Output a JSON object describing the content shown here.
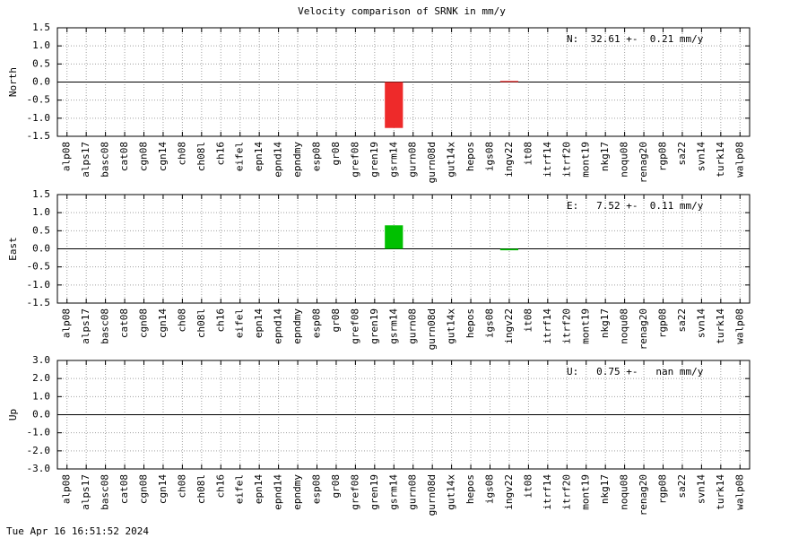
{
  "title": "Velocity comparison of SRNK in mm/y",
  "footer": "Tue Apr 16 16:51:52 2024",
  "chart_data": [
    {
      "type": "bar",
      "ylabel": "North",
      "annotation": "N:  32.61 +-  0.21 mm/y",
      "color": "#ee2a2a",
      "grid": true,
      "categories": [
        "alp08",
        "alps17",
        "basc08",
        "cat08",
        "cgn08",
        "cgn14",
        "ch08",
        "ch08l",
        "ch16",
        "eifel",
        "epn14",
        "epnd14",
        "epndmy",
        "esp08",
        "gr08",
        "gref08",
        "gren19",
        "gsrm14",
        "gurn08",
        "gurn08d",
        "gut14x",
        "hepos",
        "igs08",
        "ingv22",
        "it08",
        "itrf14",
        "itrf20",
        "mont19",
        "nkg17",
        "noqu08",
        "renag20",
        "rgp08",
        "sa22",
        "svn14",
        "turk14",
        "walp08"
      ],
      "values": [
        0,
        0,
        0,
        0,
        0,
        0,
        0,
        0,
        0,
        0,
        0,
        0,
        0,
        0,
        0,
        0,
        0,
        -1.27,
        0,
        0,
        0,
        0,
        0,
        0.03,
        0,
        0,
        0,
        0,
        0,
        0,
        0,
        0,
        0,
        0,
        0,
        0
      ],
      "ylim": [
        -1.5,
        1.5
      ],
      "yticks": [
        -1.5,
        {
          "value": -1,
          "label": "-1.0"
        },
        -0.5,
        {
          "value": 0,
          "label": "0.0"
        },
        0.5,
        {
          "value": 1,
          "label": "1.0"
        },
        1.5
      ]
    },
    {
      "type": "bar",
      "ylabel": "East",
      "annotation": "E:   7.52 +-  0.11 mm/y",
      "color": "#00c000",
      "grid": true,
      "categories": [
        "alp08",
        "alps17",
        "basc08",
        "cat08",
        "cgn08",
        "cgn14",
        "ch08",
        "ch08l",
        "ch16",
        "eifel",
        "epn14",
        "epnd14",
        "epndmy",
        "esp08",
        "gr08",
        "gref08",
        "gren19",
        "gsrm14",
        "gurn08",
        "gurn08d",
        "gut14x",
        "hepos",
        "igs08",
        "ingv22",
        "it08",
        "itrf14",
        "itrf20",
        "mont19",
        "nkg17",
        "noqu08",
        "renag20",
        "rgp08",
        "sa22",
        "svn14",
        "turk14",
        "walp08"
      ],
      "values": [
        0,
        0,
        0,
        0,
        0,
        0,
        0,
        0,
        0,
        0,
        0,
        0,
        0,
        0,
        0,
        0,
        0,
        0.65,
        0,
        0,
        0,
        0,
        0,
        -0.04,
        0,
        0,
        0,
        0,
        0,
        0,
        0,
        0,
        0,
        0,
        0,
        0
      ],
      "ylim": [
        -1.5,
        1.5
      ],
      "yticks": [
        -1.5,
        {
          "value": -1,
          "label": "-1.0"
        },
        -0.5,
        {
          "value": 0,
          "label": "0.0"
        },
        0.5,
        {
          "value": 1,
          "label": "1.0"
        },
        1.5
      ]
    },
    {
      "type": "bar",
      "ylabel": "Up",
      "annotation": "U:   0.75 +-   nan mm/y",
      "color": "#2040ff",
      "grid": true,
      "categories": [
        "alp08",
        "alps17",
        "basc08",
        "cat08",
        "cgn08",
        "cgn14",
        "ch08",
        "ch08l",
        "ch16",
        "eifel",
        "epn14",
        "epnd14",
        "epndmy",
        "esp08",
        "gr08",
        "gref08",
        "gren19",
        "gsrm14",
        "gurn08",
        "gurn08d",
        "gut14x",
        "hepos",
        "igs08",
        "ingv22",
        "it08",
        "itrf14",
        "itrf20",
        "mont19",
        "nkg17",
        "noqu08",
        "renag20",
        "rgp08",
        "sa22",
        "svn14",
        "turk14",
        "walp08"
      ],
      "values": [
        0,
        0,
        0,
        0,
        0,
        0,
        0,
        0,
        0,
        0,
        0,
        0,
        0,
        0,
        0,
        0,
        0,
        0,
        0,
        0,
        0,
        0,
        0,
        0,
        0,
        0,
        0,
        0,
        0,
        0,
        0,
        0,
        0,
        0,
        0,
        0
      ],
      "ylim": [
        -3,
        3
      ],
      "yticks": [
        {
          "value": -3,
          "label": "-3.0"
        },
        {
          "value": -2,
          "label": "-2.0"
        },
        {
          "value": -1,
          "label": "-1.0"
        },
        {
          "value": 0,
          "label": "0.0"
        },
        {
          "value": 1,
          "label": "1.0"
        },
        {
          "value": 2,
          "label": "2.0"
        },
        {
          "value": 3,
          "label": "3.0"
        }
      ]
    }
  ]
}
